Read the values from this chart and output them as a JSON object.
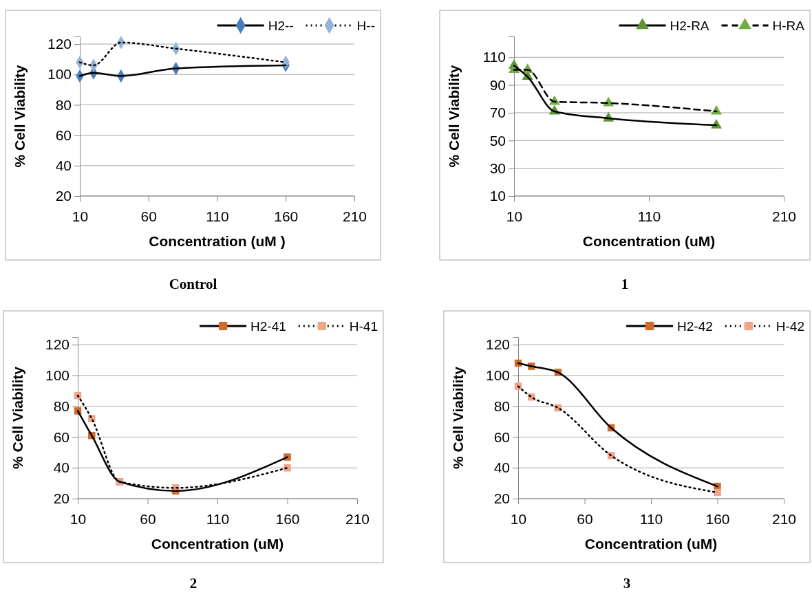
{
  "chart_data": [
    {
      "type": "line",
      "title": "Control",
      "xlabel": "Concentration (uM )",
      "ylabel": "% Cell Viability",
      "xlim": [
        10,
        210
      ],
      "xticks": [
        10,
        60,
        110,
        160,
        210
      ],
      "ylim": [
        20,
        125
      ],
      "yticks": [
        20,
        40,
        60,
        80,
        100,
        120
      ],
      "grid": "y",
      "legend": "top right",
      "x": [
        10,
        20,
        40,
        80,
        160
      ],
      "series": [
        {
          "name": "H2--",
          "color": "#4a7ebb",
          "marker": "diamond",
          "line_style": "solid",
          "values": [
            99,
            101,
            99,
            104,
            106
          ]
        },
        {
          "name": "H--",
          "color": "#95b3d7",
          "marker": "diamond",
          "line_style": "dotted",
          "values": [
            108,
            106,
            121,
            117,
            108
          ]
        }
      ]
    },
    {
      "type": "line",
      "title": "1",
      "xlabel": "Concentration (uM)",
      "ylabel": "% Cell Viability",
      "xlim": [
        10,
        210
      ],
      "xticks": [
        10,
        110,
        210
      ],
      "ylim": [
        10,
        125
      ],
      "yticks": [
        10,
        30,
        50,
        70,
        90,
        110
      ],
      "grid": "y",
      "legend": "top right",
      "x": [
        10,
        20,
        40,
        80,
        160
      ],
      "series": [
        {
          "name": "H2-RA",
          "color": "#5e9432",
          "marker": "triangle",
          "line_style": "solid",
          "values": [
            104,
            96,
            71,
            66,
            61
          ]
        },
        {
          "name": "H-RA",
          "color": "#70ad47",
          "marker": "triangle",
          "line_style": "dashed",
          "values": [
            101,
            101,
            78,
            77,
            71
          ]
        }
      ]
    },
    {
      "type": "line",
      "title": "2",
      "xlabel": "Concentration (uM)",
      "ylabel": "% Cell Viability",
      "xlim": [
        10,
        210
      ],
      "xticks": [
        10,
        60,
        110,
        160,
        210
      ],
      "ylim": [
        20,
        125
      ],
      "yticks": [
        20,
        40,
        60,
        80,
        100,
        120
      ],
      "grid": "y",
      "legend": "top right",
      "x": [
        10,
        20,
        40,
        80,
        160
      ],
      "series": [
        {
          "name": "H2-41",
          "color": "#d06b2a",
          "marker": "square",
          "line_style": "solid",
          "values": [
            77,
            61,
            31,
            25,
            47
          ]
        },
        {
          "name": "H-41",
          "color": "#f0a488",
          "marker": "square",
          "line_style": "dotted",
          "values": [
            87,
            72,
            31,
            27,
            40
          ]
        }
      ]
    },
    {
      "type": "line",
      "title": "3",
      "xlabel": "Concentration (uM)",
      "ylabel": "% Cell Viability",
      "xlim": [
        10,
        210
      ],
      "xticks": [
        10,
        60,
        110,
        160,
        210
      ],
      "ylim": [
        20,
        125
      ],
      "yticks": [
        20,
        40,
        60,
        80,
        100,
        120
      ],
      "grid": "y",
      "legend": "top right",
      "x": [
        10,
        20,
        40,
        80,
        160
      ],
      "series": [
        {
          "name": "H2-42",
          "color": "#d06b2a",
          "marker": "square",
          "line_style": "solid",
          "values": [
            108,
            106,
            102,
            66,
            28
          ]
        },
        {
          "name": "H-42",
          "color": "#f0a488",
          "marker": "square",
          "line_style": "dotted",
          "values": [
            93,
            86,
            79,
            48,
            24
          ]
        }
      ]
    }
  ]
}
